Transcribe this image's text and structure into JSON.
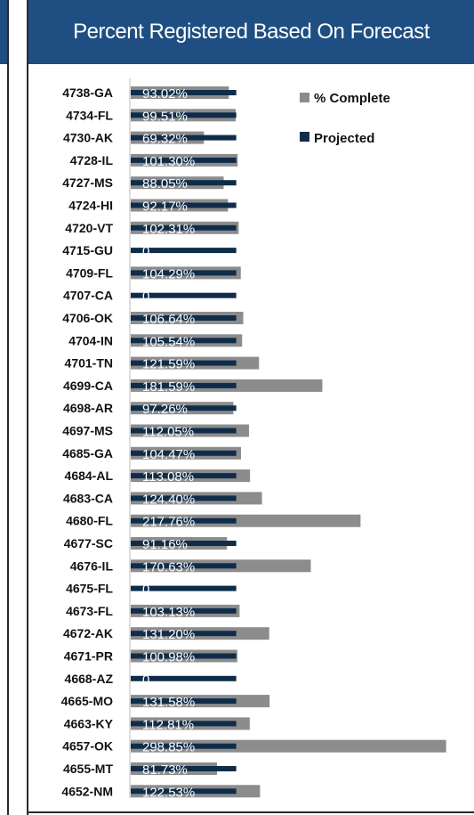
{
  "chart_data": {
    "type": "bar",
    "orientation": "horizontal",
    "title": "Percent Registered Based On Forecast",
    "categories": [
      "4738-GA",
      "4734-FL",
      "4730-AK",
      "4728-IL",
      "4727-MS",
      "4724-HI",
      "4720-VT",
      "4715-GU",
      "4709-FL",
      "4707-CA",
      "4706-OK",
      "4704-IN",
      "4701-TN",
      "4699-CA",
      "4698-AR",
      "4697-MS",
      "4685-GA",
      "4684-AL",
      "4683-CA",
      "4680-FL",
      "4677-SC",
      "4676-IL",
      "4675-FL",
      "4673-FL",
      "4672-AK",
      "4671-PR",
      "4668-AZ",
      "4665-MO",
      "4663-KY",
      "4657-OK",
      "4655-MT",
      "4652-NM"
    ],
    "series": [
      {
        "name": "% Complete",
        "color": "#8c8c8c",
        "values": [
          93.02,
          99.51,
          69.32,
          101.3,
          88.05,
          92.17,
          102.31,
          0,
          104.29,
          0,
          106.64,
          105.54,
          121.59,
          181.59,
          97.26,
          112.05,
          104.47,
          113.08,
          124.4,
          217.76,
          91.16,
          170.63,
          0,
          103.13,
          131.2,
          100.98,
          0,
          131.58,
          112.81,
          298.85,
          81.73,
          122.53
        ],
        "labels": [
          "93.02%",
          "99.51%",
          "69.32%",
          "101.30%",
          "88.05%",
          "92.17%",
          "102.31%",
          "0",
          "104.29%",
          "0",
          "106.64%",
          "105.54%",
          "121.59%",
          "181.59%",
          "97.26%",
          "112.05%",
          "104.47%",
          "113.08%",
          "124.40%",
          "217.76%",
          "91.16%",
          "170.63%",
          "0",
          "103.13%",
          "131.20%",
          "100.98%",
          "0",
          "131.58%",
          "112.81%",
          "298.85%",
          "81.73%",
          "122.53%"
        ]
      },
      {
        "name": "Projected",
        "color": "#0f2d4a",
        "values": [
          100,
          100,
          100,
          100,
          100,
          100,
          100,
          100,
          100,
          100,
          100,
          100,
          100,
          100,
          100,
          100,
          100,
          100,
          100,
          100,
          100,
          100,
          100,
          100,
          100,
          100,
          100,
          100,
          100,
          100,
          100,
          100
        ]
      }
    ],
    "xlim": [
      0,
      300
    ],
    "grid": false,
    "legend_position": "top-right"
  }
}
